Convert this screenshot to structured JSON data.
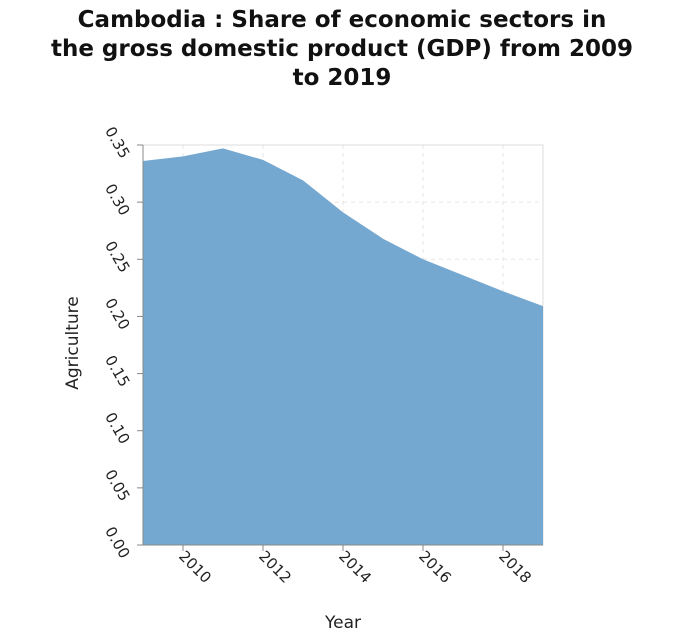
{
  "chart_data": {
    "type": "area",
    "title_lines": [
      "Cambodia : Share of economic sectors in",
      "the gross domestic product (GDP) from 2009",
      "to 2019"
    ],
    "xlabel": "Year",
    "ylabel": "Agriculture",
    "x": [
      2009,
      2010,
      2011,
      2012,
      2013,
      2014,
      2015,
      2016,
      2017,
      2018,
      2019
    ],
    "series": [
      {
        "values": [
          0.336,
          0.34,
          0.347,
          0.337,
          0.319,
          0.291,
          0.268,
          0.25,
          0.236,
          0.222,
          0.209
        ]
      }
    ],
    "xlim": [
      2009,
      2019
    ],
    "ylim": [
      0,
      0.35
    ],
    "x_ticks": [
      "2010",
      "2012",
      "2014",
      "2016",
      "2018"
    ],
    "y_ticks": [
      "0.00",
      "0.05",
      "0.10",
      "0.15",
      "0.20",
      "0.25",
      "0.30",
      "0.35"
    ],
    "grid": true,
    "colors": {
      "fill": "#75a8d0",
      "grid": "#e6e6e6",
      "axis": "#888888"
    }
  }
}
